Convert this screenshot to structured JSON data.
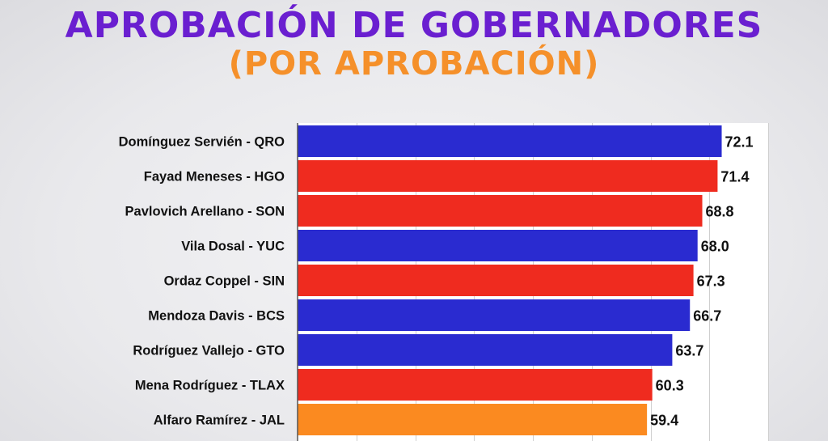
{
  "title": "APROBACIÓN DE GOBERNADORES",
  "subtitle": "(POR APROBACIÓN)",
  "colors": {
    "title": "#6a1fd0",
    "subtitle": "#f5902a",
    "blue": "#2a2bd0",
    "red": "#ef2b1f",
    "orange": "#fb8a20"
  },
  "chart_data": {
    "type": "bar",
    "orientation": "horizontal",
    "grid": true,
    "xlim": [
      0,
      80
    ],
    "categories": [
      "Domínguez Servién - QRO",
      "Fayad Meneses - HGO",
      "Pavlovich Arellano - SON",
      "Vila Dosal - YUC",
      "Ordaz Coppel - SIN",
      "Mendoza Davis - BCS",
      "Rodríguez Vallejo - GTO",
      "Mena Rodríguez - TLAX",
      "Alfaro Ramírez - JAL"
    ],
    "values": [
      72.1,
      71.4,
      68.8,
      68.0,
      67.3,
      66.7,
      63.7,
      60.3,
      59.4
    ],
    "value_labels": [
      "72.1",
      "71.4",
      "68.8",
      "68.0",
      "67.3",
      "66.7",
      "63.7",
      "60.3",
      "59.4"
    ],
    "bar_colors": [
      "blue",
      "red",
      "red",
      "blue",
      "red",
      "blue",
      "blue",
      "red",
      "orange"
    ]
  }
}
